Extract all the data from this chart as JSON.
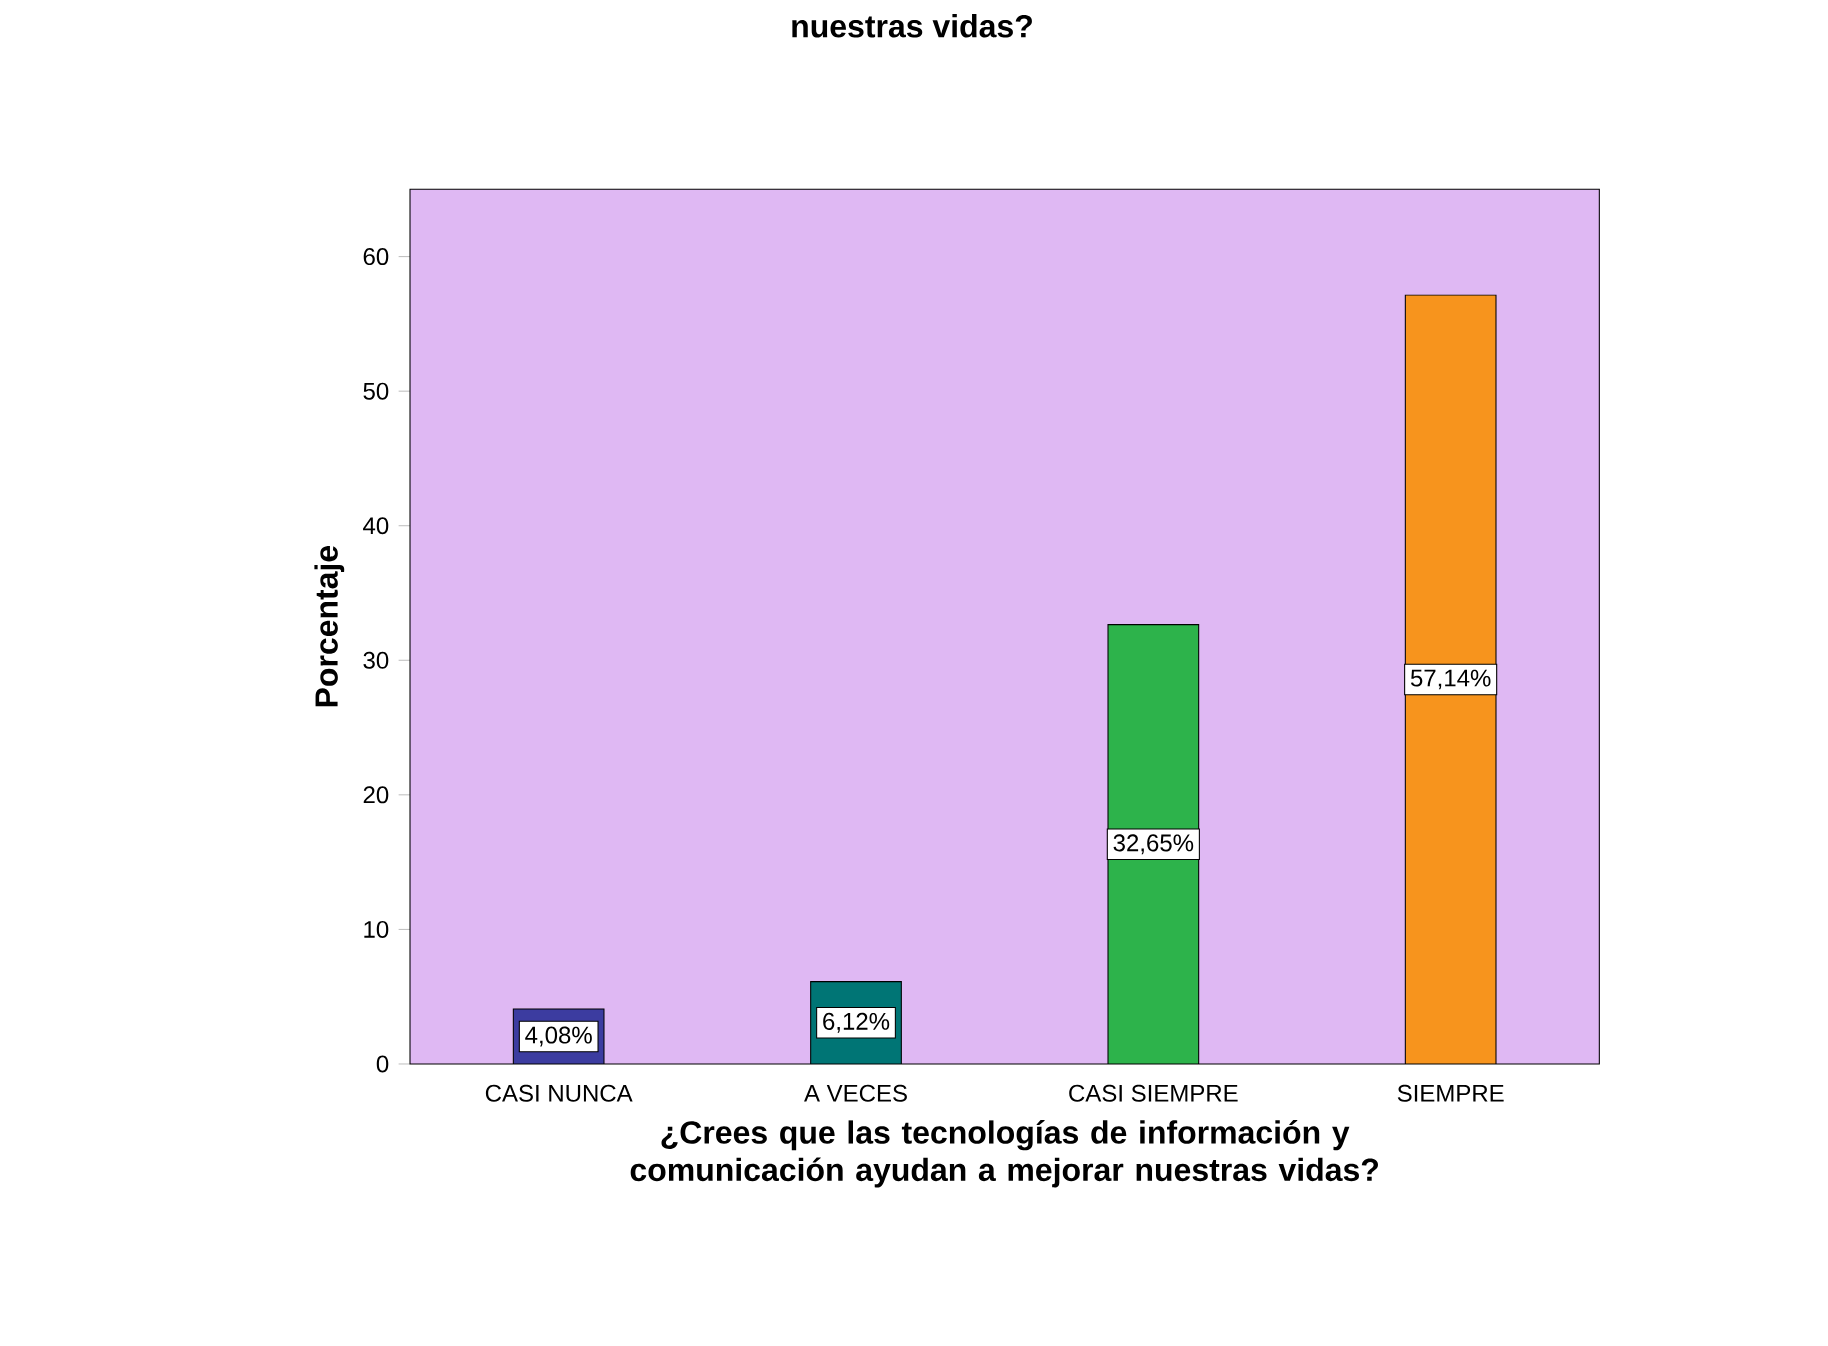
{
  "chart_data": {
    "type": "bar",
    "title": "nuestras vidas?",
    "xlabel": "¿Crees que las tecnologías de información y comunicación ayudan a mejorar nuestras vidas?",
    "ylabel": "Porcentaje",
    "categories": [
      "CASI NUNCA",
      "A VECES",
      "CASI SIEMPRE",
      "SIEMPRE"
    ],
    "values": [
      4.08,
      6.12,
      32.65,
      57.14
    ],
    "colors": [
      "#3c3ca0",
      "#007575",
      "#2db34b",
      "#f7941d"
    ],
    "value_labels": [
      "4,08%",
      "6,12%",
      "32,65%",
      "57,14%"
    ],
    "ylim": [
      0,
      65
    ],
    "yticks": [
      0,
      10,
      20,
      30,
      40,
      50,
      60
    ]
  }
}
